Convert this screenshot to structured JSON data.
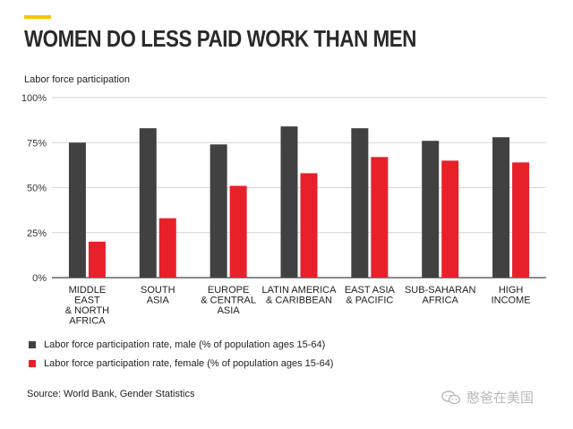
{
  "header": {
    "title": "WOMEN DO LESS PAID WORK THAN MEN"
  },
  "colors": {
    "accent": "#f5c400",
    "male": "#414141",
    "female": "#e8202a"
  },
  "chart_data": {
    "type": "bar",
    "ylabel": "Labor force participation",
    "ylim": [
      0,
      100
    ],
    "yticks": [
      "0%",
      "25%",
      "50%",
      "75%",
      "100%"
    ],
    "yticks_values": [
      0,
      25,
      50,
      75,
      100
    ],
    "grid": true,
    "categories": [
      [
        "MIDDLE",
        "EAST",
        "& NORTH",
        "AFRICA"
      ],
      [
        "SOUTH",
        "ASIA"
      ],
      [
        "EUROPE",
        "& CENTRAL",
        "ASIA"
      ],
      [
        "LATIN AMERICA",
        "& CARIBBEAN"
      ],
      [
        "EAST ASIA",
        "& PACIFIC"
      ],
      [
        "SUB-SAHARAN",
        "AFRICA"
      ],
      [
        "HIGH",
        "INCOME"
      ]
    ],
    "series": [
      {
        "name": "Labor force participation rate, male (% of population ages 15-64)",
        "color": "#414141",
        "values": [
          75,
          83,
          74,
          84,
          83,
          76,
          78
        ]
      },
      {
        "name": "Labor force participation rate, female (% of population ages 15-64)",
        "color": "#e8202a",
        "values": [
          20,
          33,
          51,
          58,
          67,
          65,
          64
        ]
      }
    ],
    "legend_position": "bottom-left"
  },
  "footer": {
    "source": "Source: World Bank, Gender Statistics"
  },
  "watermark": {
    "text": "憨爸在美国",
    "icon": "wechat-icon"
  }
}
